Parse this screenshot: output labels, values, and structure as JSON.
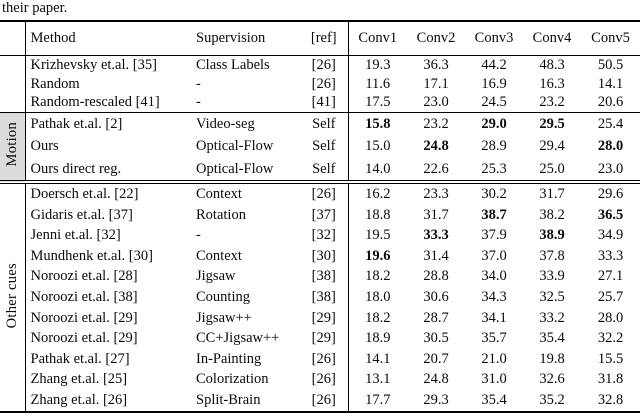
{
  "caption_fragment": "their paper.",
  "label_shade_color": "#dcdcdc",
  "table": {
    "header": {
      "method": "Method",
      "supervision": "Supervision",
      "ref": "[ref]",
      "convs": [
        "Conv1",
        "Conv2",
        "Conv3",
        "Conv4",
        "Conv5"
      ]
    },
    "sections": [
      {
        "id": "baselines",
        "label": "",
        "shaded": false,
        "rows": [
          {
            "method": "Krizhevsky et.al. [35]",
            "supervision": "Class Labels",
            "ref": "[26]",
            "values": [
              "19.3",
              "36.3",
              "44.2",
              "48.3",
              "50.5"
            ],
            "bold": []
          },
          {
            "method": "Random",
            "supervision": "-",
            "ref": "[26]",
            "values": [
              "11.6",
              "17.1",
              "16.9",
              "16.3",
              "14.1"
            ],
            "bold": []
          },
          {
            "method": "Random-rescaled [41]",
            "supervision": "-",
            "ref": "[41]",
            "values": [
              "17.5",
              "23.0",
              "24.5",
              "23.2",
              "20.6"
            ],
            "bold": []
          }
        ]
      },
      {
        "id": "motion",
        "label": "Motion",
        "shaded": true,
        "rows": [
          {
            "method": "Pathak et.al. [2]",
            "supervision": "Video-seg",
            "ref": "Self",
            "values": [
              "15.8",
              "23.2",
              "29.0",
              "29.5",
              "25.4"
            ],
            "bold": [
              0,
              2,
              3
            ]
          },
          {
            "method": "Ours",
            "supervision": "Optical-Flow",
            "ref": "Self",
            "values": [
              "15.0",
              "24.8",
              "28.9",
              "29.4",
              "28.0"
            ],
            "bold": [
              1,
              4
            ]
          },
          {
            "method": "Ours direct reg.",
            "supervision": "Optical-Flow",
            "ref": "Self",
            "values": [
              "14.0",
              "22.6",
              "25.3",
              "25.0",
              "23.0"
            ],
            "bold": []
          }
        ]
      },
      {
        "id": "other-cues",
        "label": "Other cues",
        "shaded": false,
        "rows": [
          {
            "method": "Doersch et.al. [22]",
            "supervision": "Context",
            "ref": "[26]",
            "values": [
              "16.2",
              "23.3",
              "30.2",
              "31.7",
              "29.6"
            ],
            "bold": []
          },
          {
            "method": "Gidaris et.al. [37]",
            "supervision": "Rotation",
            "ref": "[37]",
            "values": [
              "18.8",
              "31.7",
              "38.7",
              "38.2",
              "36.5"
            ],
            "bold": [
              2,
              4
            ]
          },
          {
            "method": "Jenni et.al. [32]",
            "supervision": "-",
            "ref": "[32]",
            "values": [
              "19.5",
              "33.3",
              "37.9",
              "38.9",
              "34.9"
            ],
            "bold": [
              1,
              3
            ]
          },
          {
            "method": "Mundhenk et.al. [30]",
            "supervision": "Context",
            "ref": "[30]",
            "values": [
              "19.6",
              "31.4",
              "37.0",
              "37.8",
              "33.3"
            ],
            "bold": [
              0
            ]
          },
          {
            "method": "Noroozi et.al. [28]",
            "supervision": "Jigsaw",
            "ref": "[38]",
            "values": [
              "18.2",
              "28.8",
              "34.0",
              "33.9",
              "27.1"
            ],
            "bold": []
          },
          {
            "method": "Noroozi et.al. [38]",
            "supervision": "Counting",
            "ref": "[38]",
            "values": [
              "18.0",
              "30.6",
              "34.3",
              "32.5",
              "25.7"
            ],
            "bold": []
          },
          {
            "method": "Noroozi et.al. [29]",
            "supervision": "Jigsaw++",
            "ref": "[29]",
            "values": [
              "18.2",
              "28.7",
              "34.1",
              "33.2",
              "28.0"
            ],
            "bold": []
          },
          {
            "method": "Noroozi et.al. [29]",
            "supervision": "CC+Jigsaw++",
            "ref": "[29]",
            "values": [
              "18.9",
              "30.5",
              "35.7",
              "35.4",
              "32.2"
            ],
            "bold": []
          },
          {
            "method": "Pathak et.al. [27]",
            "supervision": "In-Painting",
            "ref": "[26]",
            "values": [
              "14.1",
              "20.7",
              "21.0",
              "19.8",
              "15.5"
            ],
            "bold": []
          },
          {
            "method": "Zhang et.al. [25]",
            "supervision": "Colorization",
            "ref": "[26]",
            "values": [
              "13.1",
              "24.8",
              "31.0",
              "32.6",
              "31.8"
            ],
            "bold": []
          },
          {
            "method": "Zhang et.al. [26]",
            "supervision": "Split-Brain",
            "ref": "[26]",
            "values": [
              "17.7",
              "29.3",
              "35.4",
              "35.2",
              "32.8"
            ],
            "bold": []
          }
        ]
      }
    ]
  }
}
